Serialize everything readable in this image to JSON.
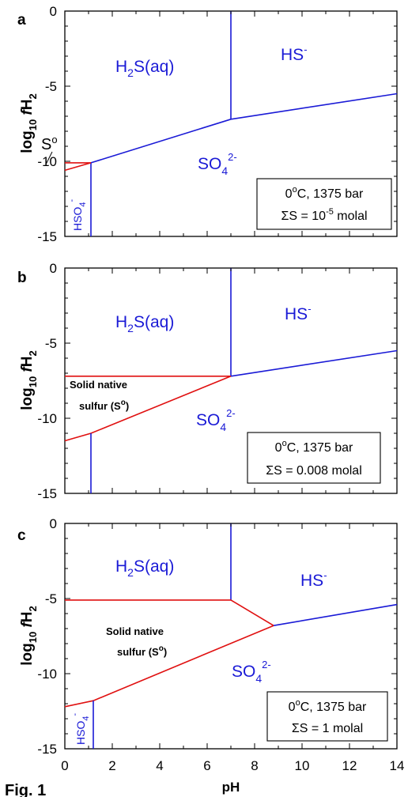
{
  "figure_label": "Fig. 1",
  "colors": {
    "aqueous_boundary": "#1a1ad6",
    "sulfur_boundary": "#e01010",
    "axis": "#000000"
  },
  "chart_data": [
    {
      "panel": "a",
      "type": "line",
      "xlabel": "",
      "ylabel": "log10 fH2",
      "xlim": [
        0,
        14
      ],
      "ylim": [
        -15,
        0
      ],
      "yticks": [
        0,
        -5,
        -10,
        -15
      ],
      "regions": [
        "H2S(aq)",
        "HS-",
        "SO4 2-",
        "HSO4-"
      ],
      "annotations": [
        "So"
      ],
      "conditions": [
        "0oC, 1375 bar",
        "ΣS = 10-5 molal"
      ],
      "series": [
        {
          "color": "blue",
          "points": [
            [
              7.0,
              0
            ],
            [
              7.0,
              -7.2
            ]
          ]
        },
        {
          "color": "blue",
          "points": [
            [
              7.0,
              -7.2
            ],
            [
              14.0,
              -5.5
            ]
          ]
        },
        {
          "color": "blue",
          "points": [
            [
              1.1,
              -10.1
            ],
            [
              7.0,
              -7.2
            ]
          ]
        },
        {
          "color": "blue",
          "points": [
            [
              1.1,
              -10.1
            ],
            [
              1.1,
              -15
            ]
          ]
        },
        {
          "color": "red",
          "points": [
            [
              0,
              -10.1
            ],
            [
              1.1,
              -10.1
            ]
          ]
        },
        {
          "color": "red",
          "points": [
            [
              0,
              -10.6
            ],
            [
              1.1,
              -10.1
            ]
          ]
        }
      ]
    },
    {
      "panel": "b",
      "type": "line",
      "xlabel": "",
      "ylabel": "log10 fH2",
      "xlim": [
        0,
        14
      ],
      "ylim": [
        -15,
        0
      ],
      "yticks": [
        0,
        -5,
        -10,
        -15
      ],
      "regions": [
        "H2S(aq)",
        "HS-",
        "SO4 2-",
        "Solid native sulfur (So)"
      ],
      "conditions": [
        "0oC, 1375 bar",
        "ΣS = 0.008 molal"
      ],
      "series": [
        {
          "color": "blue",
          "points": [
            [
              7.0,
              0
            ],
            [
              7.0,
              -7.2
            ]
          ]
        },
        {
          "color": "blue",
          "points": [
            [
              7.0,
              -7.2
            ],
            [
              14.0,
              -5.5
            ]
          ]
        },
        {
          "color": "red",
          "points": [
            [
              0,
              -7.2
            ],
            [
              7.0,
              -7.2
            ]
          ]
        },
        {
          "color": "red",
          "points": [
            [
              0,
              -11.5
            ],
            [
              1.1,
              -11.0
            ],
            [
              7.0,
              -7.2
            ]
          ]
        },
        {
          "color": "blue",
          "points": [
            [
              1.1,
              -11.0
            ],
            [
              1.1,
              -15
            ]
          ]
        }
      ]
    },
    {
      "panel": "c",
      "type": "line",
      "xlabel": "pH",
      "ylabel": "log10 fH2",
      "xlim": [
        0,
        14
      ],
      "ylim": [
        -15,
        0
      ],
      "xticks": [
        0,
        2,
        4,
        6,
        8,
        10,
        12,
        14
      ],
      "yticks": [
        0,
        -5,
        -10,
        -15
      ],
      "regions": [
        "H2S(aq)",
        "HS-",
        "SO4 2-",
        "HSO4-",
        "Solid native sulfur (So)"
      ],
      "conditions": [
        "0oC, 1375 bar",
        "ΣS = 1 molal"
      ],
      "series": [
        {
          "color": "blue",
          "points": [
            [
              7.0,
              0
            ],
            [
              7.0,
              -5.1
            ]
          ]
        },
        {
          "color": "red",
          "points": [
            [
              0,
              -5.1
            ],
            [
              7.0,
              -5.1
            ]
          ]
        },
        {
          "color": "red",
          "points": [
            [
              7.0,
              -5.1
            ],
            [
              8.8,
              -6.8
            ]
          ]
        },
        {
          "color": "blue",
          "points": [
            [
              8.8,
              -6.8
            ],
            [
              14.0,
              -5.4
            ]
          ]
        },
        {
          "color": "red",
          "points": [
            [
              0,
              -12.2
            ],
            [
              1.2,
              -11.8
            ],
            [
              8.8,
              -6.8
            ]
          ]
        },
        {
          "color": "blue",
          "points": [
            [
              1.2,
              -11.8
            ],
            [
              1.2,
              -15
            ]
          ]
        }
      ]
    }
  ],
  "text": {
    "panel_a": "a",
    "panel_b": "b",
    "panel_c": "c",
    "ylab_pre": "log",
    "ylab_sub": "10",
    "ylab_f": "f",
    "ylab_h": "H",
    "ylab_2": "2",
    "h2s_h": "H",
    "h2s_2": "2",
    "h2s_rest": "S(aq)",
    "hs": "HS",
    "hs_sup": "-",
    "so4_so": "SO",
    "so4_4": "4",
    "so4_sup": "2-",
    "hso4_hso": "HSO",
    "hso4_4": "4",
    "hso4_sup": "-",
    "so_s": "S",
    "so_o": "o",
    "native1": "Solid native",
    "native2_a": "sulfur (S",
    "native2_o": "o",
    "native2_b": ")",
    "cond_pre": "0",
    "cond_o": "o",
    "cond_rest": "C, 1375 bar",
    "a_sum": "ΣS = 10",
    "a_exp": "-5",
    "a_unit": " molal",
    "b_sum": "ΣS = 0.008 molal",
    "c_sum": "ΣS = 1 molal",
    "ytick_0": "0",
    "ytick_5": "-5",
    "ytick_10": "-10",
    "ytick_15": "-15",
    "xt0": "0",
    "xt2": "2",
    "xt4": "4",
    "xt6": "6",
    "xt8": "8",
    "xt10": "10",
    "xt12": "12",
    "xt14": "14",
    "xlabel": "pH",
    "fig": "Fig. 1"
  }
}
